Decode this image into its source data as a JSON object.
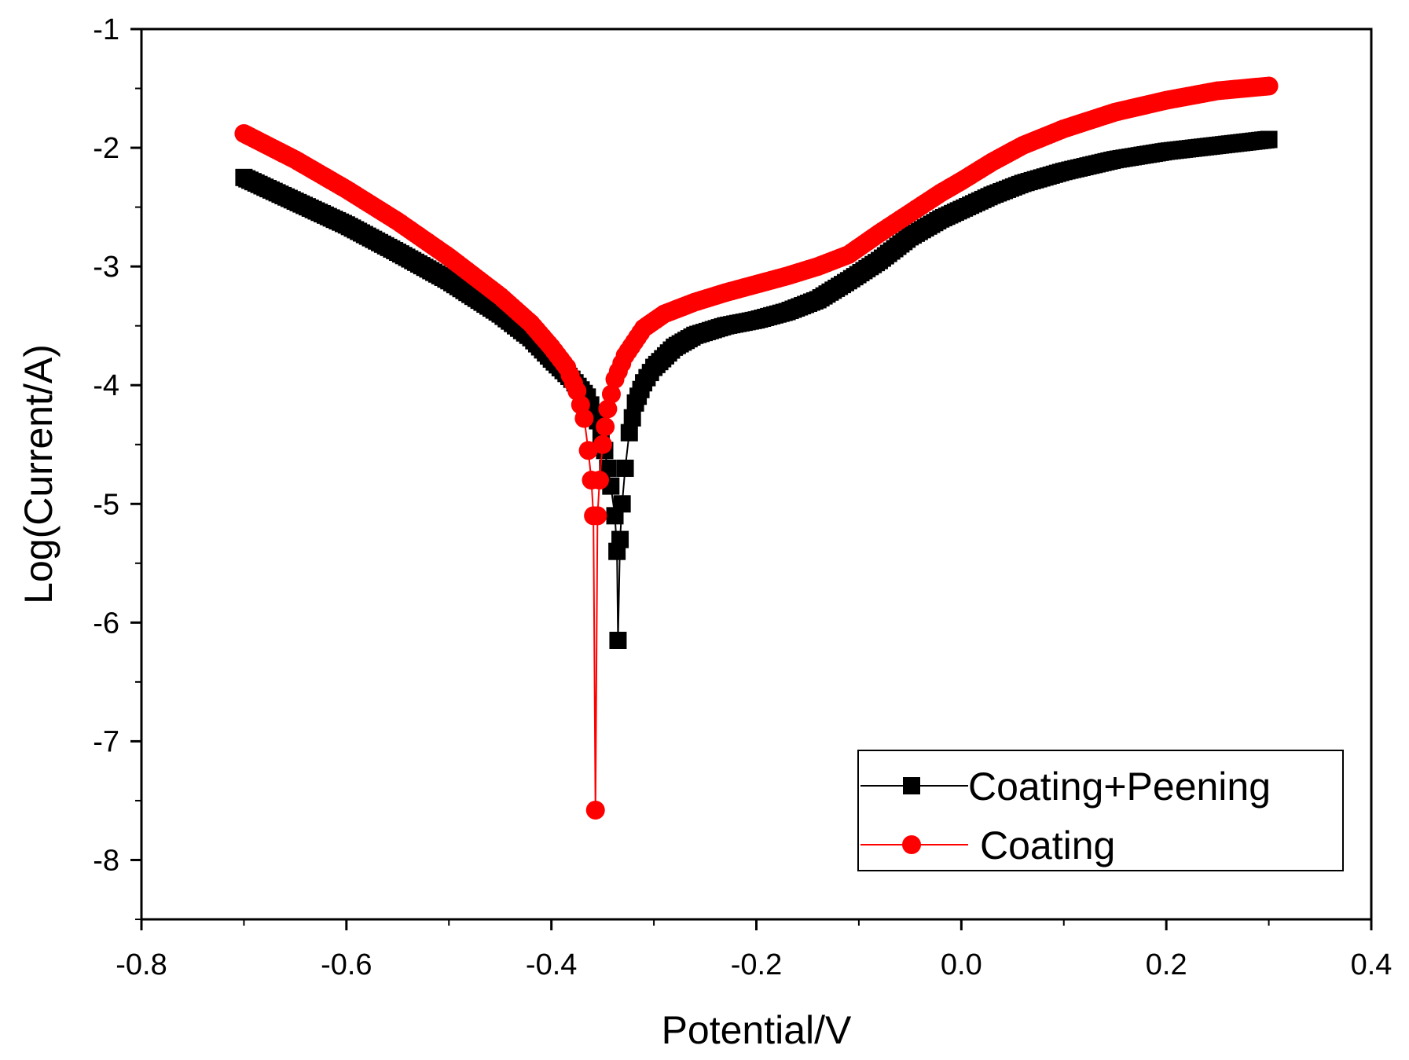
{
  "chart_data": {
    "type": "scatter",
    "title": "",
    "xlabel": "Potential/V",
    "ylabel": "Log(Current/A)",
    "xlim": [
      -0.8,
      0.4
    ],
    "ylim": [
      -8.5,
      -1
    ],
    "x_ticks": [
      -0.8,
      -0.6,
      -0.4,
      -0.2,
      0.0,
      0.2,
      0.4
    ],
    "x_tick_labels": [
      "-0.8",
      "-0.6",
      "-0.4",
      "-0.2",
      "0.0",
      "0.2",
      "0.4"
    ],
    "y_ticks": [
      -1,
      -2,
      -3,
      -4,
      -5,
      -6,
      -7,
      -8
    ],
    "y_tick_labels": [
      "-1",
      "-2",
      "-3",
      "-4",
      "-5",
      "-6",
      "-7",
      "-8"
    ],
    "grid": false,
    "legend_position": "bottom-right",
    "series": [
      {
        "name": "Coating+Peening",
        "color": "#000000",
        "marker": "square",
        "points": [
          [
            -0.7,
            -2.25
          ],
          [
            -0.65,
            -2.45
          ],
          [
            -0.6,
            -2.65
          ],
          [
            -0.55,
            -2.88
          ],
          [
            -0.5,
            -3.12
          ],
          [
            -0.45,
            -3.4
          ],
          [
            -0.42,
            -3.6
          ],
          [
            -0.4,
            -3.78
          ],
          [
            -0.38,
            -3.95
          ],
          [
            -0.365,
            -4.1
          ],
          [
            -0.355,
            -4.3
          ],
          [
            -0.348,
            -4.55
          ],
          [
            -0.342,
            -4.85
          ],
          [
            -0.338,
            -5.1
          ],
          [
            -0.336,
            -5.4
          ],
          [
            -0.335,
            -6.15
          ],
          [
            -0.333,
            -5.3
          ],
          [
            -0.331,
            -5.0
          ],
          [
            -0.328,
            -4.7
          ],
          [
            -0.324,
            -4.4
          ],
          [
            -0.318,
            -4.15
          ],
          [
            -0.31,
            -3.98
          ],
          [
            -0.3,
            -3.85
          ],
          [
            -0.28,
            -3.68
          ],
          [
            -0.26,
            -3.58
          ],
          [
            -0.23,
            -3.5
          ],
          [
            -0.2,
            -3.45
          ],
          [
            -0.17,
            -3.38
          ],
          [
            -0.14,
            -3.28
          ],
          [
            -0.11,
            -3.12
          ],
          [
            -0.08,
            -2.95
          ],
          [
            -0.05,
            -2.75
          ],
          [
            -0.02,
            -2.6
          ],
          [
            0.0,
            -2.52
          ],
          [
            0.03,
            -2.4
          ],
          [
            0.06,
            -2.3
          ],
          [
            0.1,
            -2.2
          ],
          [
            0.15,
            -2.1
          ],
          [
            0.2,
            -2.03
          ],
          [
            0.25,
            -1.98
          ],
          [
            0.3,
            -1.93
          ]
        ]
      },
      {
        "name": "Coating",
        "color": "#ff0000",
        "marker": "circle",
        "points": [
          [
            -0.7,
            -1.88
          ],
          [
            -0.65,
            -2.1
          ],
          [
            -0.6,
            -2.35
          ],
          [
            -0.55,
            -2.62
          ],
          [
            -0.5,
            -2.92
          ],
          [
            -0.45,
            -3.25
          ],
          [
            -0.42,
            -3.48
          ],
          [
            -0.4,
            -3.68
          ],
          [
            -0.385,
            -3.85
          ],
          [
            -0.375,
            -4.05
          ],
          [
            -0.368,
            -4.28
          ],
          [
            -0.364,
            -4.55
          ],
          [
            -0.361,
            -4.8
          ],
          [
            -0.359,
            -5.1
          ],
          [
            -0.357,
            -7.58
          ],
          [
            -0.355,
            -5.1
          ],
          [
            -0.353,
            -4.8
          ],
          [
            -0.35,
            -4.5
          ],
          [
            -0.345,
            -4.2
          ],
          [
            -0.338,
            -3.95
          ],
          [
            -0.328,
            -3.75
          ],
          [
            -0.31,
            -3.52
          ],
          [
            -0.29,
            -3.4
          ],
          [
            -0.26,
            -3.3
          ],
          [
            -0.23,
            -3.22
          ],
          [
            -0.2,
            -3.15
          ],
          [
            -0.17,
            -3.08
          ],
          [
            -0.14,
            -3.0
          ],
          [
            -0.11,
            -2.9
          ],
          [
            -0.08,
            -2.72
          ],
          [
            -0.05,
            -2.55
          ],
          [
            -0.02,
            -2.38
          ],
          [
            0.0,
            -2.28
          ],
          [
            0.03,
            -2.12
          ],
          [
            0.06,
            -1.98
          ],
          [
            0.1,
            -1.84
          ],
          [
            0.15,
            -1.7
          ],
          [
            0.2,
            -1.6
          ],
          [
            0.25,
            -1.52
          ],
          [
            0.3,
            -1.48
          ]
        ]
      }
    ]
  }
}
